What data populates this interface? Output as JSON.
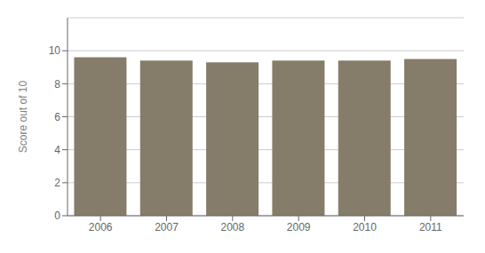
{
  "chart_data": {
    "type": "bar",
    "categories": [
      "2006",
      "2007",
      "2008",
      "2009",
      "2010",
      "2011"
    ],
    "values": [
      9.6,
      9.4,
      9.3,
      9.4,
      9.4,
      9.5
    ],
    "color": "#857c6a",
    "ylabel": "Score out of 10",
    "ylim": [
      0,
      12
    ],
    "yticks": [
      0,
      2,
      4,
      6,
      8,
      10
    ],
    "grid": true
  }
}
